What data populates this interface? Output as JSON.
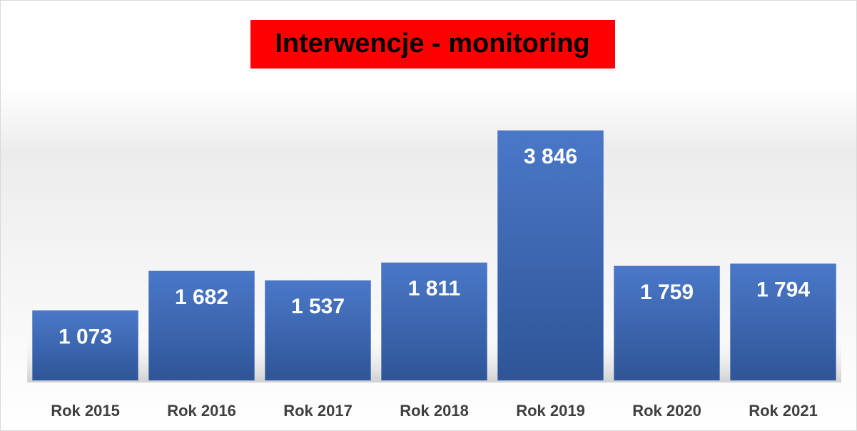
{
  "chart_data": {
    "type": "bar",
    "title": "Interwencje - monitoring",
    "title_background": "#ff0000",
    "categories": [
      "Rok 2015",
      "Rok 2016",
      "Rok 2017",
      "Rok 2018",
      "Rok 2019",
      "Rok 2020",
      "Rok 2021"
    ],
    "values": [
      1073,
      1682,
      1537,
      1811,
      3846,
      1759,
      1794
    ],
    "value_labels": [
      "1 073",
      "1 682",
      "1 537",
      "1 811",
      "3 846",
      "1 759",
      "1 794"
    ],
    "color": "#4472c4"
  }
}
